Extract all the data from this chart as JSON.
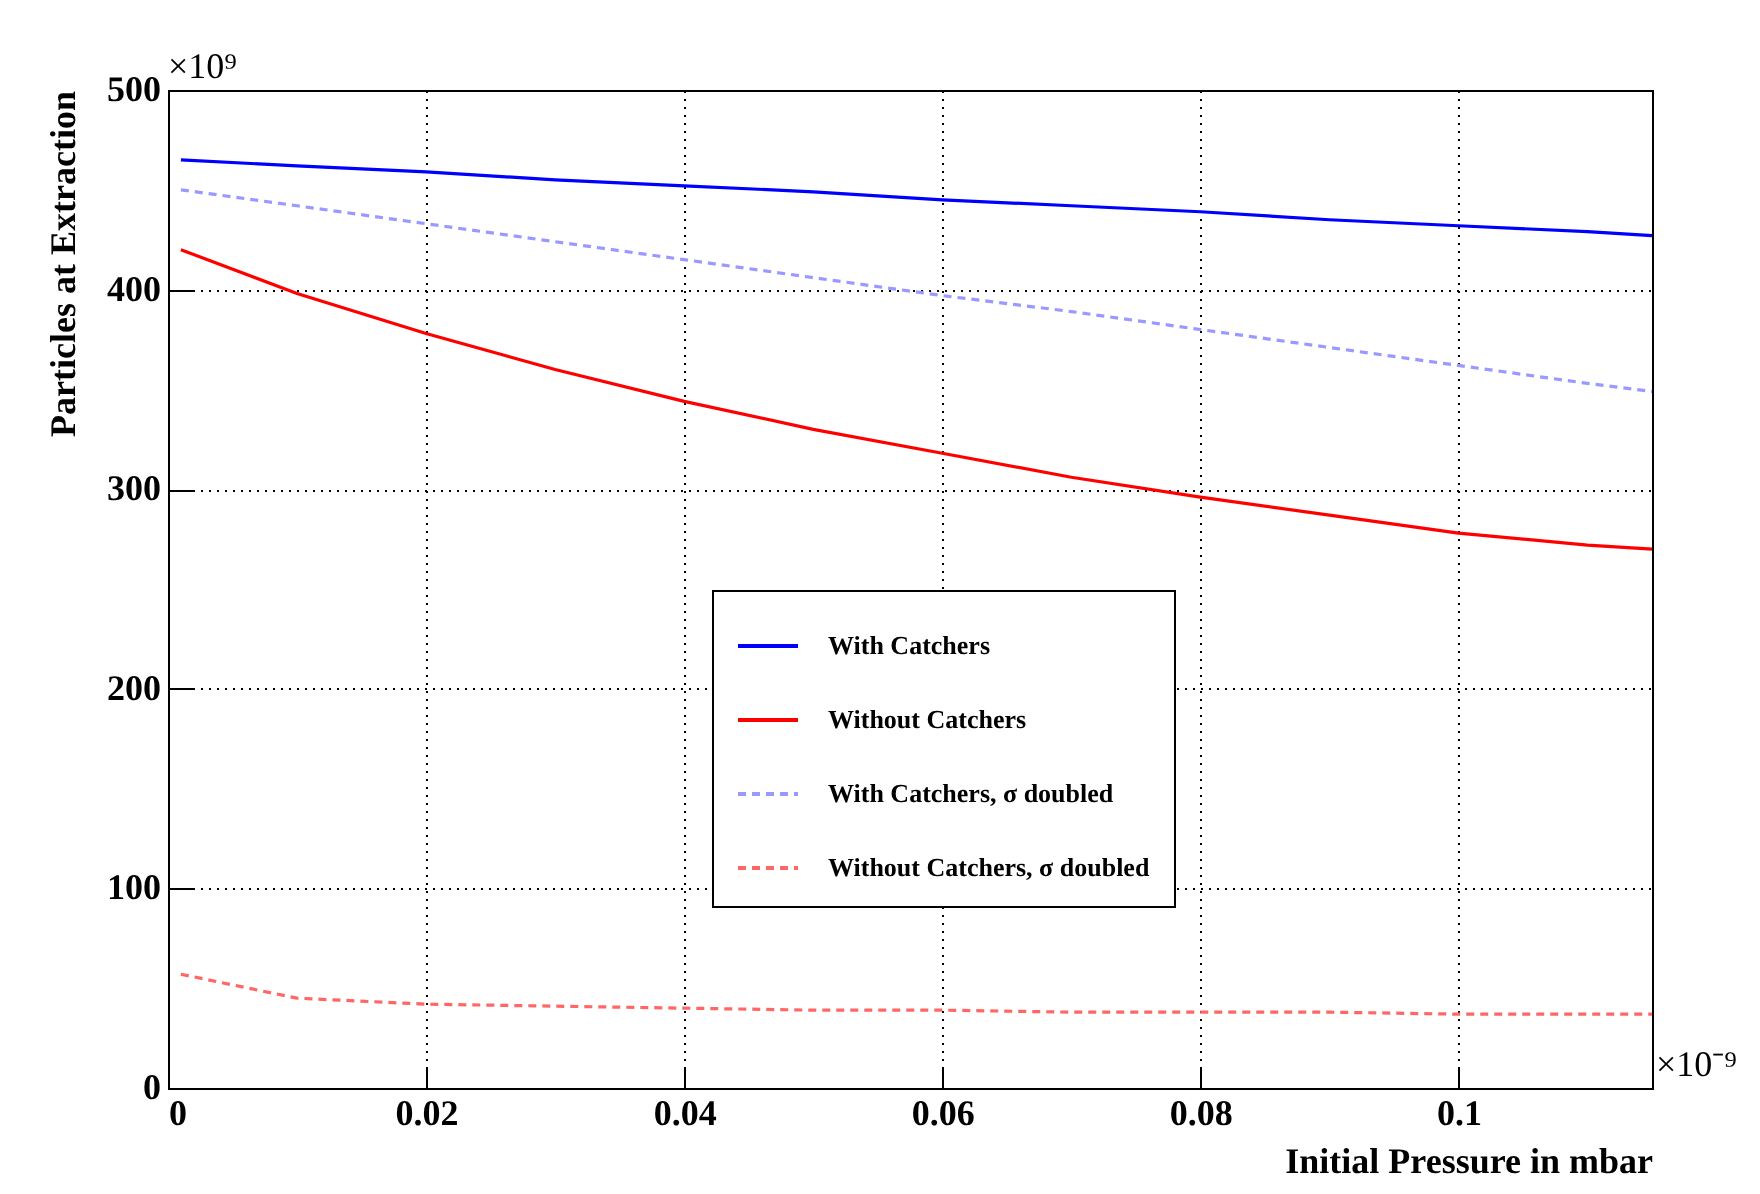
{
  "chart_data": {
    "type": "line",
    "xlabel": "Initial Pressure in mbar",
    "ylabel": "Particles at Extraction",
    "annotations": [
      "×10⁹",
      "×10⁻⁹"
    ],
    "x": [
      0.001,
      0.01,
      0.02,
      0.03,
      0.04,
      0.05,
      0.06,
      0.07,
      0.08,
      0.09,
      0.1,
      0.11,
      0.115
    ],
    "series": [
      {
        "name": "With Catchers",
        "color": "#0000ff",
        "line_style": "solid",
        "values": [
          465,
          462,
          459,
          455,
          452,
          449,
          445,
          442,
          439,
          435,
          432,
          429,
          427
        ]
      },
      {
        "name": "Without Catchers",
        "color": "#ff0000",
        "line_style": "solid",
        "values": [
          420,
          398,
          378,
          360,
          344,
          330,
          318,
          306,
          296,
          287,
          278,
          272,
          270
        ]
      },
      {
        "name": "With Catchers, σ doubled",
        "color": "#9999ff",
        "line_style": "dashed",
        "values": [
          450,
          442,
          433,
          424,
          415,
          406,
          397,
          389,
          380,
          371,
          362,
          353,
          349
        ]
      },
      {
        "name": "Without Catchers, σ doubled",
        "color": "#ff6666",
        "line_style": "dashed",
        "values": [
          57,
          45,
          42,
          41,
          40,
          39,
          39,
          38,
          38,
          38,
          37,
          37,
          37
        ]
      }
    ],
    "xlim": [
      0,
      0.115
    ],
    "xticks": [
      0,
      0.02,
      0.04,
      0.06,
      0.08,
      0.1
    ],
    "ylim": [
      0,
      500
    ],
    "yticks": [
      0,
      100,
      200,
      300,
      400,
      500
    ],
    "grid": true,
    "legend": "right"
  }
}
